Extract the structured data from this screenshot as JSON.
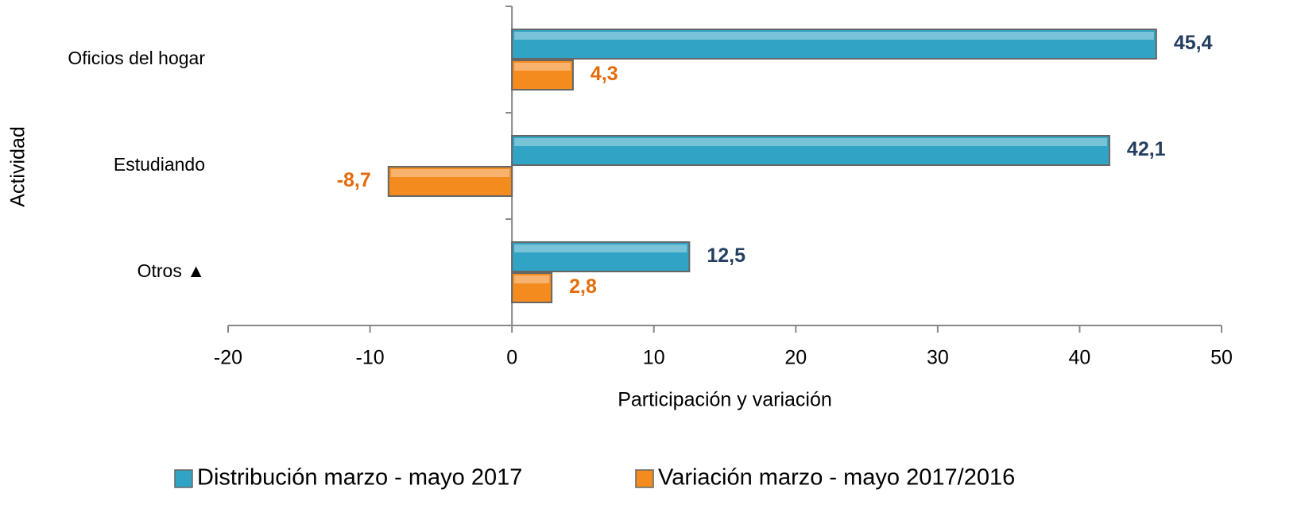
{
  "chart_data": {
    "type": "bar",
    "orientation": "horizontal",
    "categories": [
      "Oficios del hogar",
      "Estudiando",
      "Otros ▲"
    ],
    "series": [
      {
        "name": "Distribución marzo - mayo 2017",
        "color": "#31a3c4",
        "label_color": "#243f60",
        "values": [
          45.4,
          42.1,
          12.5
        ],
        "value_labels": [
          "45,4",
          "42,1",
          "12,5"
        ]
      },
      {
        "name": "Variación marzo - mayo 2017/2016",
        "color": "#f38b1f",
        "label_color": "#e46c0a",
        "values": [
          4.3,
          -8.7,
          2.8
        ],
        "value_labels": [
          "4,3",
          "-8,7",
          "2,8"
        ]
      }
    ],
    "xlim": [
      -20,
      50
    ],
    "xticks": [
      -20,
      -10,
      0,
      10,
      20,
      30,
      40,
      50
    ],
    "xlabel": "Participación y variación",
    "ylabel": "Actividad",
    "legend": "bottom"
  }
}
